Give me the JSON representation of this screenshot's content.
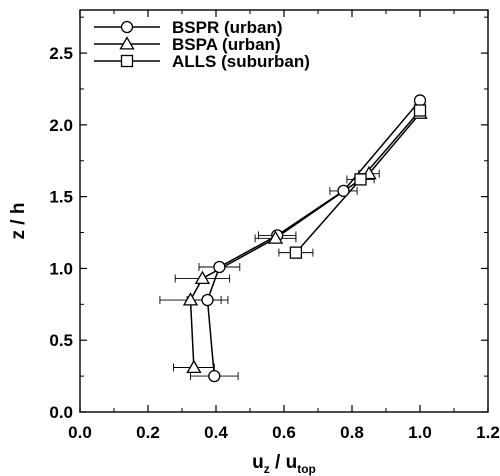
{
  "chart_data": {
    "type": "line",
    "title": "",
    "xlabel": {
      "main": "u",
      "sub1": "z",
      "sep": " / u",
      "sub2": "top"
    },
    "ylabel": "z / h",
    "xlim": [
      0.0,
      1.2
    ],
    "ylim": [
      0.0,
      2.8
    ],
    "xticks": [
      0.0,
      0.2,
      0.4,
      0.6,
      0.8,
      1.0,
      1.2
    ],
    "xtick_labels": [
      "0.0",
      "0.2",
      "0.4",
      "0.6",
      "0.8",
      "1.0",
      "1.2"
    ],
    "yticks": [
      0.0,
      0.5,
      1.0,
      1.5,
      2.0,
      2.5
    ],
    "ytick_labels": [
      "0.0",
      "0.5",
      "1.0",
      "1.5",
      "2.0",
      "2.5"
    ],
    "grid": false,
    "legend_position": "top-left",
    "series": [
      {
        "name": "BSPR (urban)",
        "marker": "circle",
        "points": [
          {
            "x": 0.395,
            "y": 0.25,
            "xerr": 0.07
          },
          {
            "x": 0.375,
            "y": 0.78,
            "xerr": 0.06
          },
          {
            "x": 0.41,
            "y": 1.01,
            "xerr": 0.06
          },
          {
            "x": 0.58,
            "y": 1.23,
            "xerr": 0.055
          },
          {
            "x": 0.775,
            "y": 1.54,
            "xerr": 0.04
          },
          {
            "x": 1.0,
            "y": 2.17,
            "xerr": 0.0
          }
        ]
      },
      {
        "name": "BSPA (urban)",
        "marker": "triangle",
        "points": [
          {
            "x": 0.335,
            "y": 0.31,
            "xerr": 0.06
          },
          {
            "x": 0.325,
            "y": 0.78,
            "xerr": 0.09
          },
          {
            "x": 0.36,
            "y": 0.93,
            "xerr": 0.08
          },
          {
            "x": 0.575,
            "y": 1.21,
            "xerr": 0.06
          },
          {
            "x": 0.85,
            "y": 1.66,
            "xerr": 0.03
          },
          {
            "x": 1.0,
            "y": 2.08,
            "xerr": 0.0
          }
        ]
      },
      {
        "name": "ALLS (suburban)",
        "marker": "square",
        "points": [
          {
            "x": 0.635,
            "y": 1.11,
            "xerr": 0.05
          },
          {
            "x": 0.825,
            "y": 1.62,
            "xerr": 0.04
          },
          {
            "x": 1.0,
            "y": 2.1,
            "xerr": 0.0
          }
        ]
      }
    ]
  }
}
